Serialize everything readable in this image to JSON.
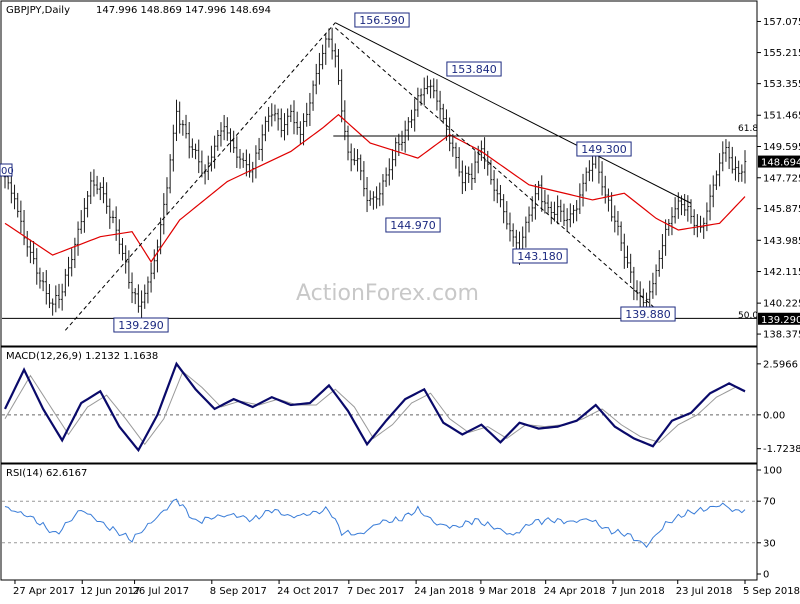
{
  "header": {
    "symbol": "GBPJPY,Daily",
    "ohlc": "147.996 148.869 147.996 148.694"
  },
  "watermark": "ActionForex.com",
  "colors": {
    "candle": "#1a1a1a",
    "ma": "#e00000",
    "trendline": "#000000",
    "annotation": "#1c2a80",
    "macd": "#0a0a6a",
    "macd_signal": "#9a9a9a",
    "rsi": "#3a7dd8"
  },
  "chart_data": [
    {
      "type": "candlestick",
      "title": "GBPJPY,Daily 147.996 148.869 147.996 148.694",
      "x_ticks": [
        "27 Apr 2017",
        "12 Jun 2017",
        "26 Jul 2017",
        "8 Sep 2017",
        "24 Oct 2017",
        "7 Dec 2017",
        "24 Jan 2018",
        "9 Mar 2018",
        "24 Apr 2018",
        "7 Jun 2018",
        "23 Jul 2018",
        "5 Sep 2018"
      ],
      "y_ticks": [
        "157.075",
        "155.215",
        "153.355",
        "151.465",
        "149.595",
        "147.725",
        "145.875",
        "143.985",
        "142.115",
        "140.225",
        "138.375"
      ],
      "ylim": [
        137.9,
        158.0
      ],
      "close_anchors": [
        [
          0,
          147.7
        ],
        [
          3,
          146.5
        ],
        [
          6,
          144.2
        ],
        [
          9,
          142.7
        ],
        [
          12,
          141.2
        ],
        [
          15,
          140.1
        ],
        [
          18,
          141.0
        ],
        [
          21,
          143.0
        ],
        [
          24,
          145.2
        ],
        [
          27,
          147.4
        ],
        [
          30,
          147.1
        ],
        [
          33,
          145.6
        ],
        [
          36,
          144.0
        ],
        [
          39,
          141.6
        ],
        [
          42,
          140.0
        ],
        [
          45,
          141.3
        ],
        [
          48,
          143.6
        ],
        [
          51,
          147.3
        ],
        [
          54,
          151.7
        ],
        [
          57,
          150.2
        ],
        [
          60,
          149.1
        ],
        [
          63,
          147.9
        ],
        [
          66,
          149.7
        ],
        [
          69,
          150.9
        ],
        [
          72,
          149.4
        ],
        [
          75,
          148.6
        ],
        [
          78,
          148.2
        ],
        [
          81,
          150.4
        ],
        [
          84,
          151.8
        ],
        [
          87,
          150.7
        ],
        [
          90,
          151.6
        ],
        [
          93,
          150.3
        ],
        [
          96,
          152.3
        ],
        [
          99,
          154.7
        ],
        [
          102,
          156.2
        ],
        [
          104,
          154.8
        ],
        [
          106,
          152.0
        ],
        [
          108,
          149.0
        ],
        [
          111,
          148.8
        ],
        [
          114,
          146.4
        ],
        [
          117,
          146.5
        ],
        [
          120,
          147.8
        ],
        [
          123,
          149.5
        ],
        [
          126,
          150.4
        ],
        [
          129,
          151.9
        ],
        [
          132,
          153.2
        ],
        [
          135,
          153.0
        ],
        [
          138,
          151.2
        ],
        [
          141,
          149.4
        ],
        [
          144,
          147.6
        ],
        [
          147,
          148.0
        ],
        [
          150,
          149.6
        ],
        [
          153,
          147.6
        ],
        [
          156,
          146.3
        ],
        [
          159,
          144.5
        ],
        [
          162,
          143.4
        ],
        [
          165,
          145.6
        ],
        [
          168,
          147.1
        ],
        [
          171,
          145.7
        ],
        [
          174,
          145.8
        ],
        [
          177,
          145.2
        ],
        [
          180,
          146.0
        ],
        [
          183,
          148.0
        ],
        [
          186,
          148.9
        ],
        [
          189,
          146.6
        ],
        [
          192,
          145.2
        ],
        [
          195,
          143.2
        ],
        [
          198,
          141.2
        ],
        [
          201,
          140.2
        ],
        [
          204,
          141.3
        ],
        [
          207,
          143.8
        ],
        [
          210,
          145.6
        ],
        [
          213,
          146.3
        ],
        [
          216,
          145.4
        ],
        [
          219,
          144.5
        ],
        [
          222,
          146.5
        ],
        [
          225,
          148.7
        ],
        [
          227,
          149.5
        ],
        [
          229,
          148.4
        ],
        [
          231,
          147.9
        ],
        [
          233,
          148.7
        ]
      ],
      "series": [
        {
          "name": "",
          "kind": "moving_average",
          "anchors": [
            [
              0,
              145.0
            ],
            [
              15,
              143.1
            ],
            [
              30,
              144.2
            ],
            [
              40,
              144.5
            ],
            [
              46,
              142.7
            ],
            [
              55,
              145.2
            ],
            [
              70,
              147.5
            ],
            [
              90,
              149.3
            ],
            [
              100,
              150.7
            ],
            [
              105,
              151.5
            ],
            [
              115,
              149.8
            ],
            [
              130,
              148.9
            ],
            [
              140,
              150.3
            ],
            [
              150,
              149.3
            ],
            [
              165,
              147.3
            ],
            [
              185,
              146.4
            ],
            [
              195,
              146.8
            ],
            [
              205,
              145.3
            ],
            [
              212,
              144.6
            ],
            [
              225,
              145.0
            ],
            [
              233,
              146.6
            ]
          ]
        }
      ],
      "annotations": [
        "156.590",
        "153.840",
        "149.300",
        "144.970",
        "143.180",
        "139.880",
        "139.290"
      ],
      "fib_labels": [
        "61.8",
        "50.0"
      ],
      "level_lines": [
        150.22,
        139.31
      ],
      "trendlines": [
        {
          "from": [
            19,
            138.6
          ],
          "to": [
            104,
            157.0
          ]
        },
        {
          "from": [
            104,
            157.0
          ],
          "to": [
            216,
            146.2
          ]
        },
        {
          "from": [
            104,
            156.7
          ],
          "to": [
            206,
            139.7
          ]
        }
      ],
      "price_tags": [
        "148.694",
        "139.290"
      ],
      "edge_stub": "00"
    },
    {
      "type": "line",
      "title": "MACD(12,26,9) 1.2132 1.1638",
      "y_ticks": [
        "2.5966",
        "0.00",
        "-1.7238"
      ],
      "ylim": [
        -2.3,
        3.2
      ],
      "series": [
        {
          "name": "",
          "kind": "macd",
          "anchors": [
            [
              0,
              0.3
            ],
            [
              6,
              2.3
            ],
            [
              12,
              0.3
            ],
            [
              18,
              -1.3
            ],
            [
              24,
              0.6
            ],
            [
              30,
              1.2
            ],
            [
              36,
              -0.6
            ],
            [
              42,
              -1.8
            ],
            [
              48,
              0.0
            ],
            [
              54,
              2.6
            ],
            [
              60,
              1.3
            ],
            [
              66,
              0.3
            ],
            [
              72,
              0.8
            ],
            [
              78,
              0.4
            ],
            [
              84,
              0.9
            ],
            [
              90,
              0.5
            ],
            [
              96,
              0.6
            ],
            [
              102,
              1.5
            ],
            [
              108,
              0.2
            ],
            [
              114,
              -1.5
            ],
            [
              120,
              -0.3
            ],
            [
              126,
              0.8
            ],
            [
              132,
              1.3
            ],
            [
              138,
              -0.4
            ],
            [
              144,
              -1.0
            ],
            [
              150,
              -0.5
            ],
            [
              156,
              -1.4
            ],
            [
              162,
              -0.4
            ],
            [
              168,
              -0.7
            ],
            [
              174,
              -0.6
            ],
            [
              180,
              -0.3
            ],
            [
              186,
              0.5
            ],
            [
              192,
              -0.6
            ],
            [
              198,
              -1.2
            ],
            [
              204,
              -1.6
            ],
            [
              210,
              -0.3
            ],
            [
              216,
              0.1
            ],
            [
              222,
              1.1
            ],
            [
              228,
              1.6
            ],
            [
              233,
              1.2
            ]
          ]
        },
        {
          "name": "",
          "kind": "signal",
          "anchors": [
            [
              0,
              -0.2
            ],
            [
              8,
              2.0
            ],
            [
              14,
              0.5
            ],
            [
              20,
              -1.0
            ],
            [
              26,
              0.4
            ],
            [
              32,
              1.0
            ],
            [
              38,
              -0.2
            ],
            [
              44,
              -1.5
            ],
            [
              50,
              -0.2
            ],
            [
              56,
              2.2
            ],
            [
              62,
              1.4
            ],
            [
              68,
              0.4
            ],
            [
              74,
              0.7
            ],
            [
              80,
              0.5
            ],
            [
              86,
              0.8
            ],
            [
              92,
              0.5
            ],
            [
              98,
              0.5
            ],
            [
              104,
              1.3
            ],
            [
              110,
              0.4
            ],
            [
              116,
              -1.2
            ],
            [
              122,
              -0.5
            ],
            [
              128,
              0.6
            ],
            [
              134,
              1.1
            ],
            [
              140,
              -0.2
            ],
            [
              146,
              -0.9
            ],
            [
              152,
              -0.6
            ],
            [
              158,
              -1.2
            ],
            [
              164,
              -0.5
            ],
            [
              170,
              -0.6
            ],
            [
              176,
              -0.5
            ],
            [
              182,
              -0.2
            ],
            [
              188,
              0.3
            ],
            [
              194,
              -0.5
            ],
            [
              200,
              -1.1
            ],
            [
              206,
              -1.4
            ],
            [
              212,
              -0.5
            ],
            [
              218,
              0.0
            ],
            [
              224,
              0.9
            ],
            [
              230,
              1.4
            ],
            [
              233,
              1.16
            ]
          ]
        }
      ]
    },
    {
      "type": "line",
      "title": "RSI(14) 62.6167",
      "y_ticks": [
        "100",
        "70",
        "30",
        "0"
      ],
      "ylim": [
        0,
        100
      ],
      "reference_lines": [
        70,
        30
      ],
      "series": [
        {
          "name": "",
          "kind": "rsi",
          "anchors": [
            [
              0,
              64
            ],
            [
              8,
              55
            ],
            [
              16,
              38
            ],
            [
              24,
              62
            ],
            [
              32,
              46
            ],
            [
              40,
              33
            ],
            [
              48,
              55
            ],
            [
              54,
              72
            ],
            [
              60,
              50
            ],
            [
              66,
              55
            ],
            [
              72,
              57
            ],
            [
              78,
              52
            ],
            [
              84,
              62
            ],
            [
              90,
              55
            ],
            [
              96,
              58
            ],
            [
              102,
              62
            ],
            [
              106,
              40
            ],
            [
              112,
              38
            ],
            [
              118,
              50
            ],
            [
              124,
              52
            ],
            [
              130,
              62
            ],
            [
              136,
              48
            ],
            [
              142,
              45
            ],
            [
              148,
              52
            ],
            [
              154,
              45
            ],
            [
              160,
              37
            ],
            [
              166,
              50
            ],
            [
              172,
              52
            ],
            [
              178,
              50
            ],
            [
              184,
              53
            ],
            [
              190,
              42
            ],
            [
              196,
              38
            ],
            [
              202,
              27
            ],
            [
              208,
              48
            ],
            [
              214,
              58
            ],
            [
              220,
              62
            ],
            [
              226,
              67
            ],
            [
              230,
              60
            ],
            [
              233,
              62
            ]
          ]
        }
      ]
    }
  ]
}
